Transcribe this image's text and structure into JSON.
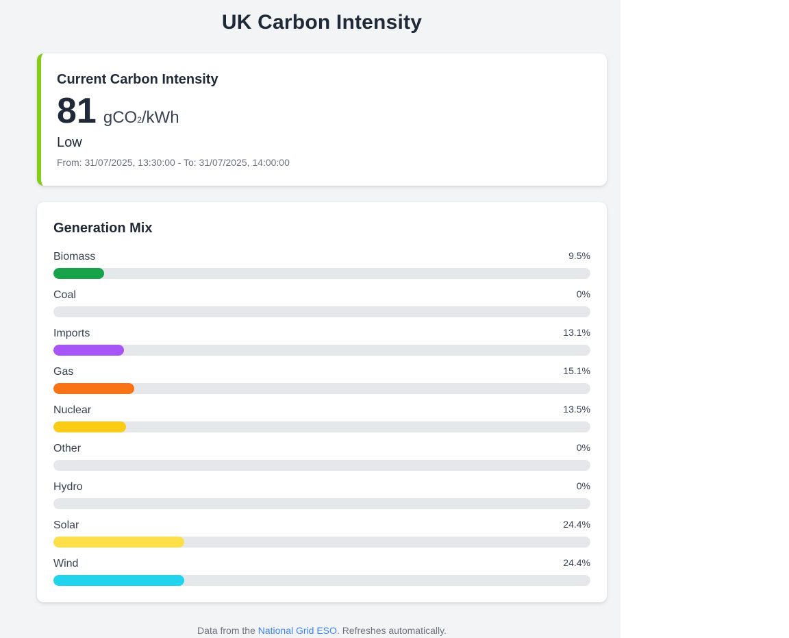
{
  "header": {
    "title": "UK Carbon Intensity"
  },
  "current": {
    "heading": "Current Carbon Intensity",
    "value": "81",
    "unit_prefix": "gCO",
    "unit_sub": "2",
    "unit_suffix": "/kWh",
    "index": "Low",
    "index_color": "#84cc16",
    "period": "From: 31/07/2025, 13:30:00 - To: 31/07/2025, 14:00:00"
  },
  "mix": {
    "heading": "Generation Mix",
    "items": [
      {
        "fuel": "Biomass",
        "perc": 9.5,
        "perc_label": "9.5%",
        "color": "#16a34a"
      },
      {
        "fuel": "Coal",
        "perc": 0,
        "perc_label": "0%",
        "color": "#4b5563"
      },
      {
        "fuel": "Imports",
        "perc": 13.1,
        "perc_label": "13.1%",
        "color": "#a855f7"
      },
      {
        "fuel": "Gas",
        "perc": 15.1,
        "perc_label": "15.1%",
        "color": "#f97316"
      },
      {
        "fuel": "Nuclear",
        "perc": 13.5,
        "perc_label": "13.5%",
        "color": "#facc15"
      },
      {
        "fuel": "Other",
        "perc": 0,
        "perc_label": "0%",
        "color": "#9ca3af"
      },
      {
        "fuel": "Hydro",
        "perc": 0,
        "perc_label": "0%",
        "color": "#3b82f6"
      },
      {
        "fuel": "Solar",
        "perc": 24.4,
        "perc_label": "24.4%",
        "color": "#fde047"
      },
      {
        "fuel": "Wind",
        "perc": 24.4,
        "perc_label": "24.4%",
        "color": "#22d3ee"
      }
    ]
  },
  "footer": {
    "prefix": "Data from the ",
    "link_text": "National Grid ESO",
    "suffix": ". Refreshes automatically.",
    "link_color": "#3b82f6"
  }
}
